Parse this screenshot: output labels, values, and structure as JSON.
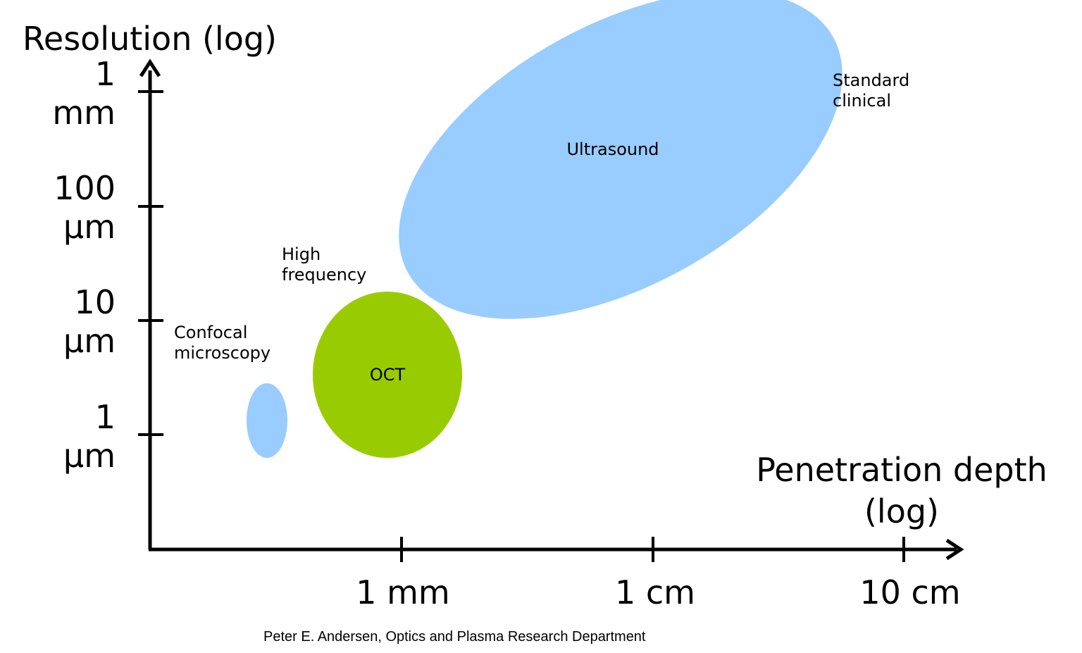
{
  "diagram": {
    "y_axis_title": "Resolution (log)",
    "x_axis_title": "Penetration depth\n(log)",
    "y_ticks": [
      "1\nmm",
      "100\nμm",
      "10\nμm",
      "1\nμm"
    ],
    "x_ticks": [
      "1 mm",
      "1 cm",
      "10 cm"
    ],
    "regions": {
      "confocal": {
        "label": "Confocal\nmicroscopy",
        "color": "#99ccff"
      },
      "oct": {
        "label": "OCT",
        "note": "High\nfrequency",
        "color": "#99cc00"
      },
      "ultrasound": {
        "label": "Ultrasound",
        "note": "Standard\nclinical",
        "color": "#99ccff"
      }
    },
    "credit": "Peter E. Andersen, Optics and Plasma Research Department"
  }
}
